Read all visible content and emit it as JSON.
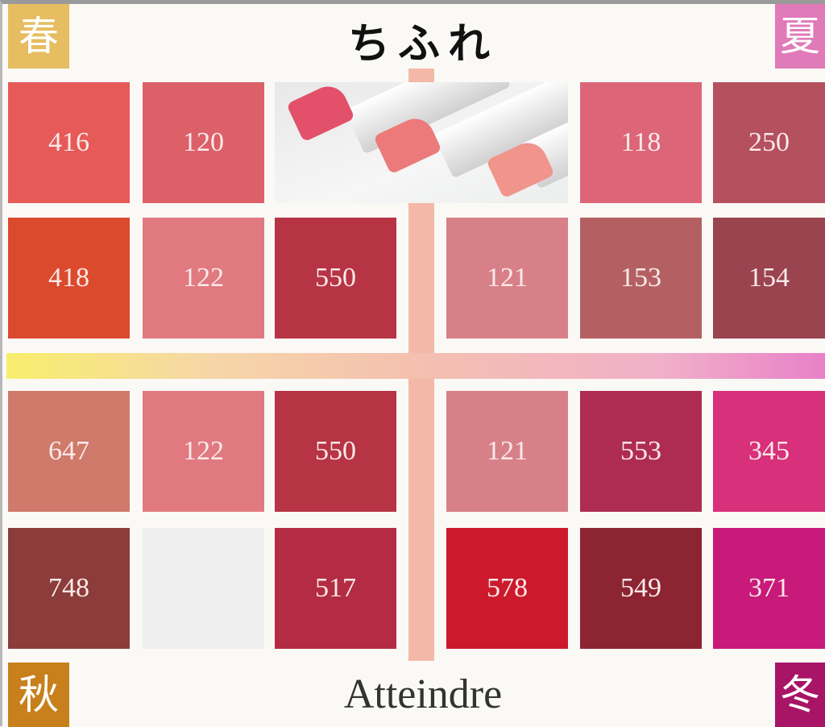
{
  "header": {
    "logo": "ちふれ",
    "brand": "Atteindre"
  },
  "seasons": [
    {
      "label": "春",
      "color": "#e6bd60"
    },
    {
      "label": "夏",
      "color": "#e07ab8"
    },
    {
      "label": "秋",
      "color": "#c8801c"
    },
    {
      "label": "冬",
      "color": "#a81466"
    }
  ],
  "swatches": [
    {
      "code": "416",
      "color": "#e65a58"
    },
    {
      "code": "120",
      "color": "#dc6068"
    },
    {
      "code": "118",
      "color": "#dc6678"
    },
    {
      "code": "250",
      "color": "#b5505e"
    },
    {
      "code": "418",
      "color": "#dc4a2e"
    },
    {
      "code": "122",
      "color": "#e07a80"
    },
    {
      "code": "550",
      "color": "#b63444"
    },
    {
      "code": "121",
      "color": "#d88088"
    },
    {
      "code": "153",
      "color": "#b46062"
    },
    {
      "code": "154",
      "color": "#9a4450"
    },
    {
      "code": "647",
      "color": "#cf7a6a"
    },
    {
      "code": "122",
      "color": "#e07a80"
    },
    {
      "code": "550",
      "color": "#b63444"
    },
    {
      "code": "121",
      "color": "#d88088"
    },
    {
      "code": "553",
      "color": "#ae2c50"
    },
    {
      "code": "345",
      "color": "#d8307a"
    },
    {
      "code": "748",
      "color": "#8c3c3a"
    },
    {
      "code": "",
      "color": "#eeefee"
    },
    {
      "code": "517",
      "color": "#b42c44"
    },
    {
      "code": "578",
      "color": "#cc1a2c"
    },
    {
      "code": "549",
      "color": "#8c2432"
    },
    {
      "code": "371",
      "color": "#c81a7a"
    }
  ]
}
